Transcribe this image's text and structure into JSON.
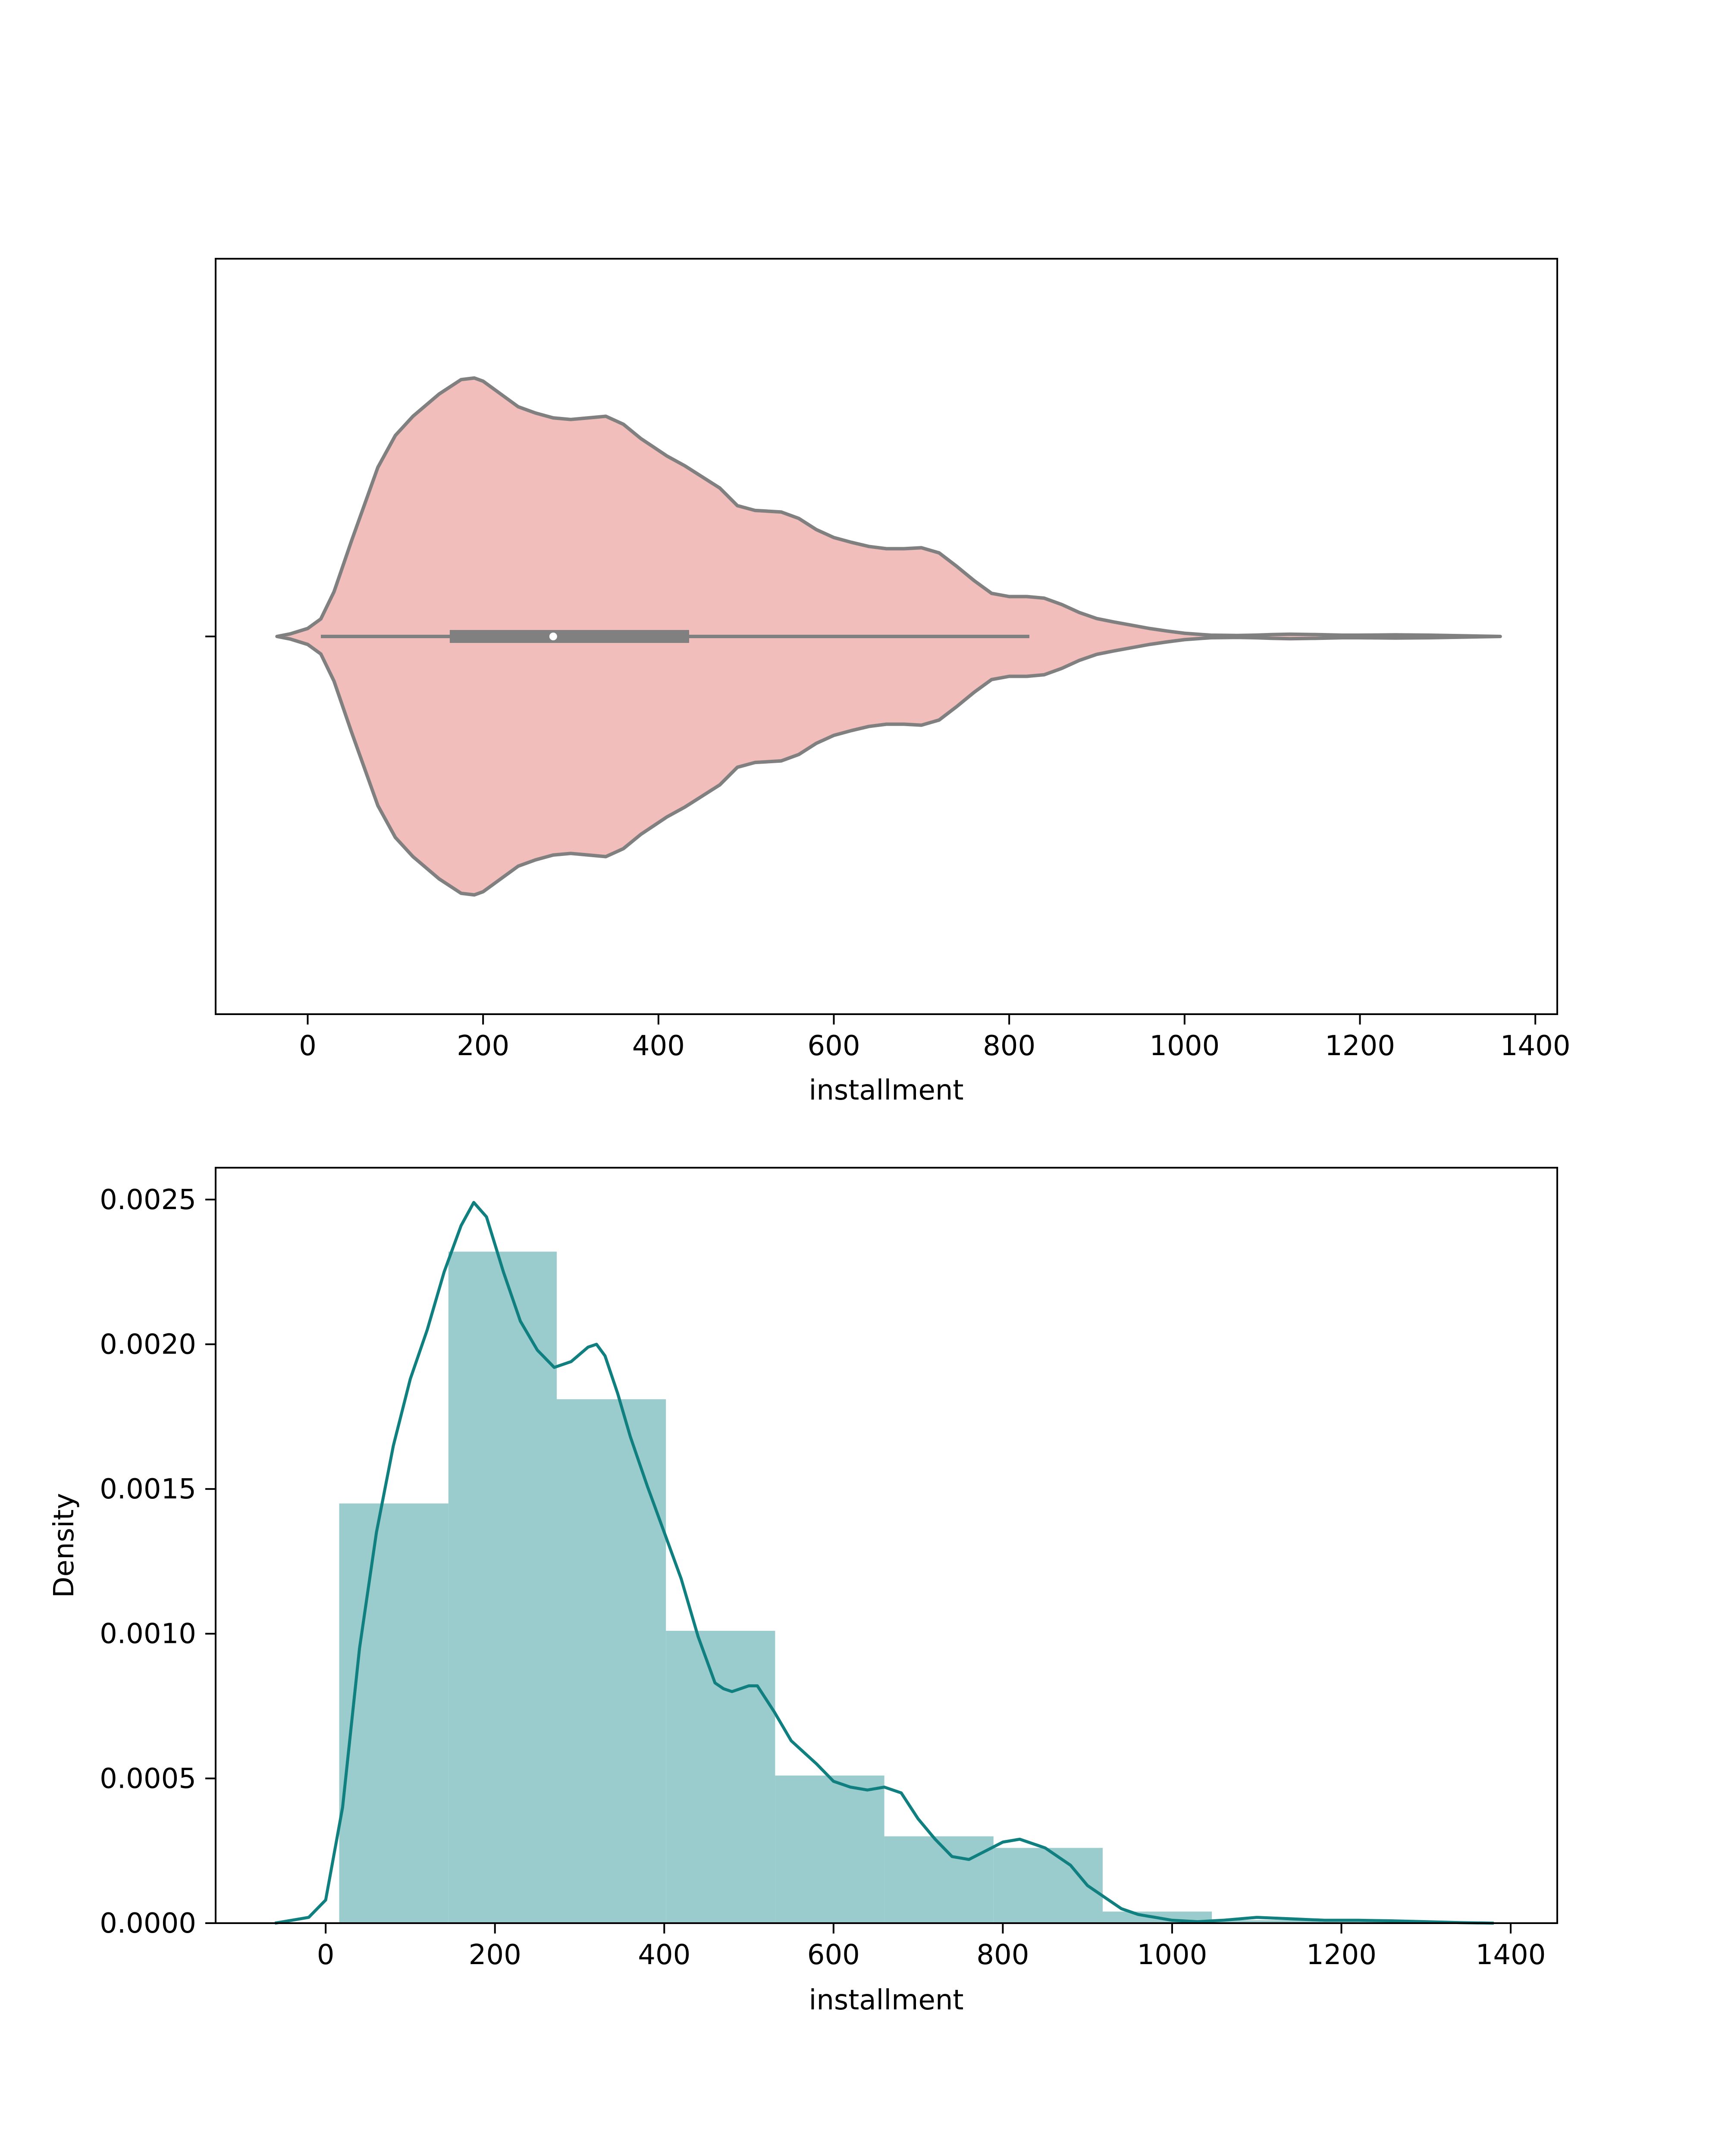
{
  "colors": {
    "violin_fill": "#F2BEBB",
    "violin_edge": "#808080",
    "box_color": "#808080",
    "median_dot": "#FFFFFF",
    "hist_fill": "#9BCCCD",
    "kde_line": "#0F7F7F",
    "axes": "#000000"
  },
  "chart_data": [
    {
      "type": "violin",
      "xlabel": "installment",
      "ylabel": "",
      "xlim": [
        -105,
        1425
      ],
      "xticks": [
        "0",
        "200",
        "400",
        "600",
        "800",
        "1000",
        "1200",
        "1400"
      ],
      "grid": false,
      "density_profile": {
        "x": [
          -35,
          -20,
          0,
          15,
          30,
          50,
          80,
          100,
          120,
          150,
          175,
          190,
          200,
          215,
          240,
          260,
          280,
          300,
          320,
          340,
          360,
          380,
          410,
          430,
          450,
          470,
          490,
          510,
          540,
          560,
          580,
          600,
          620,
          640,
          660,
          680,
          700,
          720,
          740,
          760,
          780,
          800,
          820,
          840,
          860,
          880,
          900,
          920,
          940,
          960,
          980,
          1000,
          1030,
          1060,
          1080,
          1100,
          1120,
          1150,
          1180,
          1200,
          1240,
          1280,
          1320,
          1360
        ],
        "half_width": [
          0.0,
          0.008,
          0.025,
          0.055,
          0.14,
          0.3,
          0.53,
          0.63,
          0.69,
          0.76,
          0.805,
          0.81,
          0.8,
          0.77,
          0.72,
          0.7,
          0.685,
          0.68,
          0.685,
          0.69,
          0.665,
          0.62,
          0.565,
          0.535,
          0.5,
          0.465,
          0.41,
          0.395,
          0.39,
          0.37,
          0.335,
          0.31,
          0.295,
          0.282,
          0.275,
          0.275,
          0.278,
          0.262,
          0.22,
          0.175,
          0.135,
          0.125,
          0.125,
          0.12,
          0.1,
          0.075,
          0.056,
          0.045,
          0.035,
          0.025,
          0.017,
          0.01,
          0.004,
          0.003,
          0.004,
          0.006,
          0.007,
          0.006,
          0.004,
          0.004,
          0.005,
          0.004,
          0.002,
          0.0
        ]
      },
      "box": {
        "whisker_low": 15,
        "q1": 162,
        "median": 280,
        "q3": 435,
        "whisker_high": 823
      }
    },
    {
      "type": "bar",
      "xlabel": "installment",
      "ylabel": "Density",
      "xlim": [
        -130,
        1455
      ],
      "ylim": [
        0,
        0.00261
      ],
      "xticks": [
        "0",
        "200",
        "400",
        "600",
        "800",
        "1000",
        "1200",
        "1400"
      ],
      "yticks": [
        "0.0000",
        "0.0005",
        "0.0010",
        "0.0015",
        "0.0020",
        "0.0025"
      ],
      "grid": false,
      "histogram": {
        "bin_edges": [
          16,
          145,
          273,
          402,
          531,
          660,
          789,
          918,
          1047,
          1176,
          1305
        ],
        "values": [
          0.00145,
          0.00232,
          0.00181,
          0.00101,
          0.00051,
          0.0003,
          0.00026,
          4e-05,
          1e-05,
          5e-06
        ]
      },
      "kde": {
        "x": [
          -60,
          -20,
          0,
          20,
          40,
          60,
          80,
          100,
          120,
          140,
          160,
          175,
          190,
          210,
          230,
          250,
          270,
          290,
          310,
          320,
          330,
          345,
          360,
          380,
          400,
          420,
          440,
          460,
          470,
          480,
          490,
          500,
          510,
          530,
          550,
          580,
          600,
          620,
          640,
          660,
          680,
          700,
          720,
          740,
          760,
          780,
          800,
          820,
          850,
          880,
          900,
          920,
          940,
          960,
          980,
          1000,
          1030,
          1060,
          1100,
          1140,
          1180,
          1220,
          1260,
          1300,
          1340,
          1380
        ],
        "y": [
          0.0,
          2e-05,
          8e-05,
          0.0004,
          0.00095,
          0.00135,
          0.00165,
          0.00188,
          0.00205,
          0.00225,
          0.00241,
          0.00249,
          0.00244,
          0.00225,
          0.00208,
          0.00198,
          0.00192,
          0.00194,
          0.00199,
          0.002,
          0.00196,
          0.00183,
          0.00168,
          0.00151,
          0.00135,
          0.00119,
          0.00099,
          0.00083,
          0.00081,
          0.0008,
          0.00081,
          0.00082,
          0.00082,
          0.00073,
          0.00063,
          0.00055,
          0.00049,
          0.00047,
          0.00046,
          0.00047,
          0.00045,
          0.00036,
          0.00029,
          0.00023,
          0.00022,
          0.00025,
          0.00028,
          0.00029,
          0.00026,
          0.0002,
          0.00013,
          9e-05,
          5e-05,
          3e-05,
          2e-05,
          1e-05,
          5e-06,
          1e-05,
          2e-05,
          1.5e-05,
          1e-05,
          1e-05,
          8e-06,
          5e-06,
          2e-06,
          0.0
        ]
      }
    }
  ]
}
